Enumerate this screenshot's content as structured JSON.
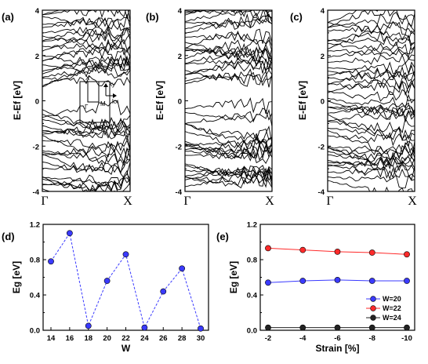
{
  "panels": {
    "a": {
      "label": "(a)"
    },
    "b": {
      "label": "(b)"
    },
    "c": {
      "label": "(c)"
    },
    "d": {
      "label": "(d)"
    },
    "e": {
      "label": "(e)"
    }
  },
  "band_axis": {
    "ylabel": "E-Ef [eV]",
    "y_ticks": [
      "4",
      "2",
      "0",
      "-2",
      "-4"
    ],
    "x_ticks": [
      "Γ",
      "X"
    ]
  },
  "bz_inset": {
    "x_label": "X",
    "m_label": "M",
    "gamma_label": "Γ",
    "ky_label": "ky",
    "kx_label": "kx"
  },
  "chart_data": [
    {
      "panel": "d",
      "type": "line",
      "xlabel": "W",
      "ylabel": "Eg [eV]",
      "xlim": [
        13,
        31
      ],
      "ylim": [
        0,
        1.2
      ],
      "x_ticks": [
        "14",
        "16",
        "18",
        "20",
        "22",
        "24",
        "26",
        "28",
        "30"
      ],
      "y_ticks": [
        "0.0",
        "0.4",
        "0.8",
        "1.2"
      ],
      "x": [
        14,
        16,
        18,
        20,
        22,
        24,
        26,
        28,
        30
      ],
      "values": [
        0.78,
        1.1,
        0.05,
        0.56,
        0.86,
        0.03,
        0.44,
        0.7,
        0.02
      ],
      "color": "#3a3aff"
    },
    {
      "panel": "e",
      "type": "line",
      "xlabel": "Strain [%]",
      "ylabel": "Eg [eV]",
      "ylim": [
        0,
        1.2
      ],
      "x_ticks": [
        "-2",
        "-4",
        "-6",
        "-8",
        "-10"
      ],
      "y_ticks": [
        "0.0",
        "0.4",
        "0.8",
        "1.2"
      ],
      "x": [
        -2,
        -4,
        -6,
        -8,
        -10
      ],
      "series": [
        {
          "name": "W=20",
          "values": [
            0.54,
            0.56,
            0.57,
            0.56,
            0.56
          ],
          "color": "#3a3aff"
        },
        {
          "name": "W=22",
          "values": [
            0.93,
            0.91,
            0.89,
            0.88,
            0.86
          ],
          "color": "#ff2a2a"
        },
        {
          "name": "W=24",
          "values": [
            0.03,
            0.03,
            0.03,
            0.03,
            0.03
          ],
          "color": "#222222"
        }
      ],
      "legend": "bottom-right"
    }
  ]
}
